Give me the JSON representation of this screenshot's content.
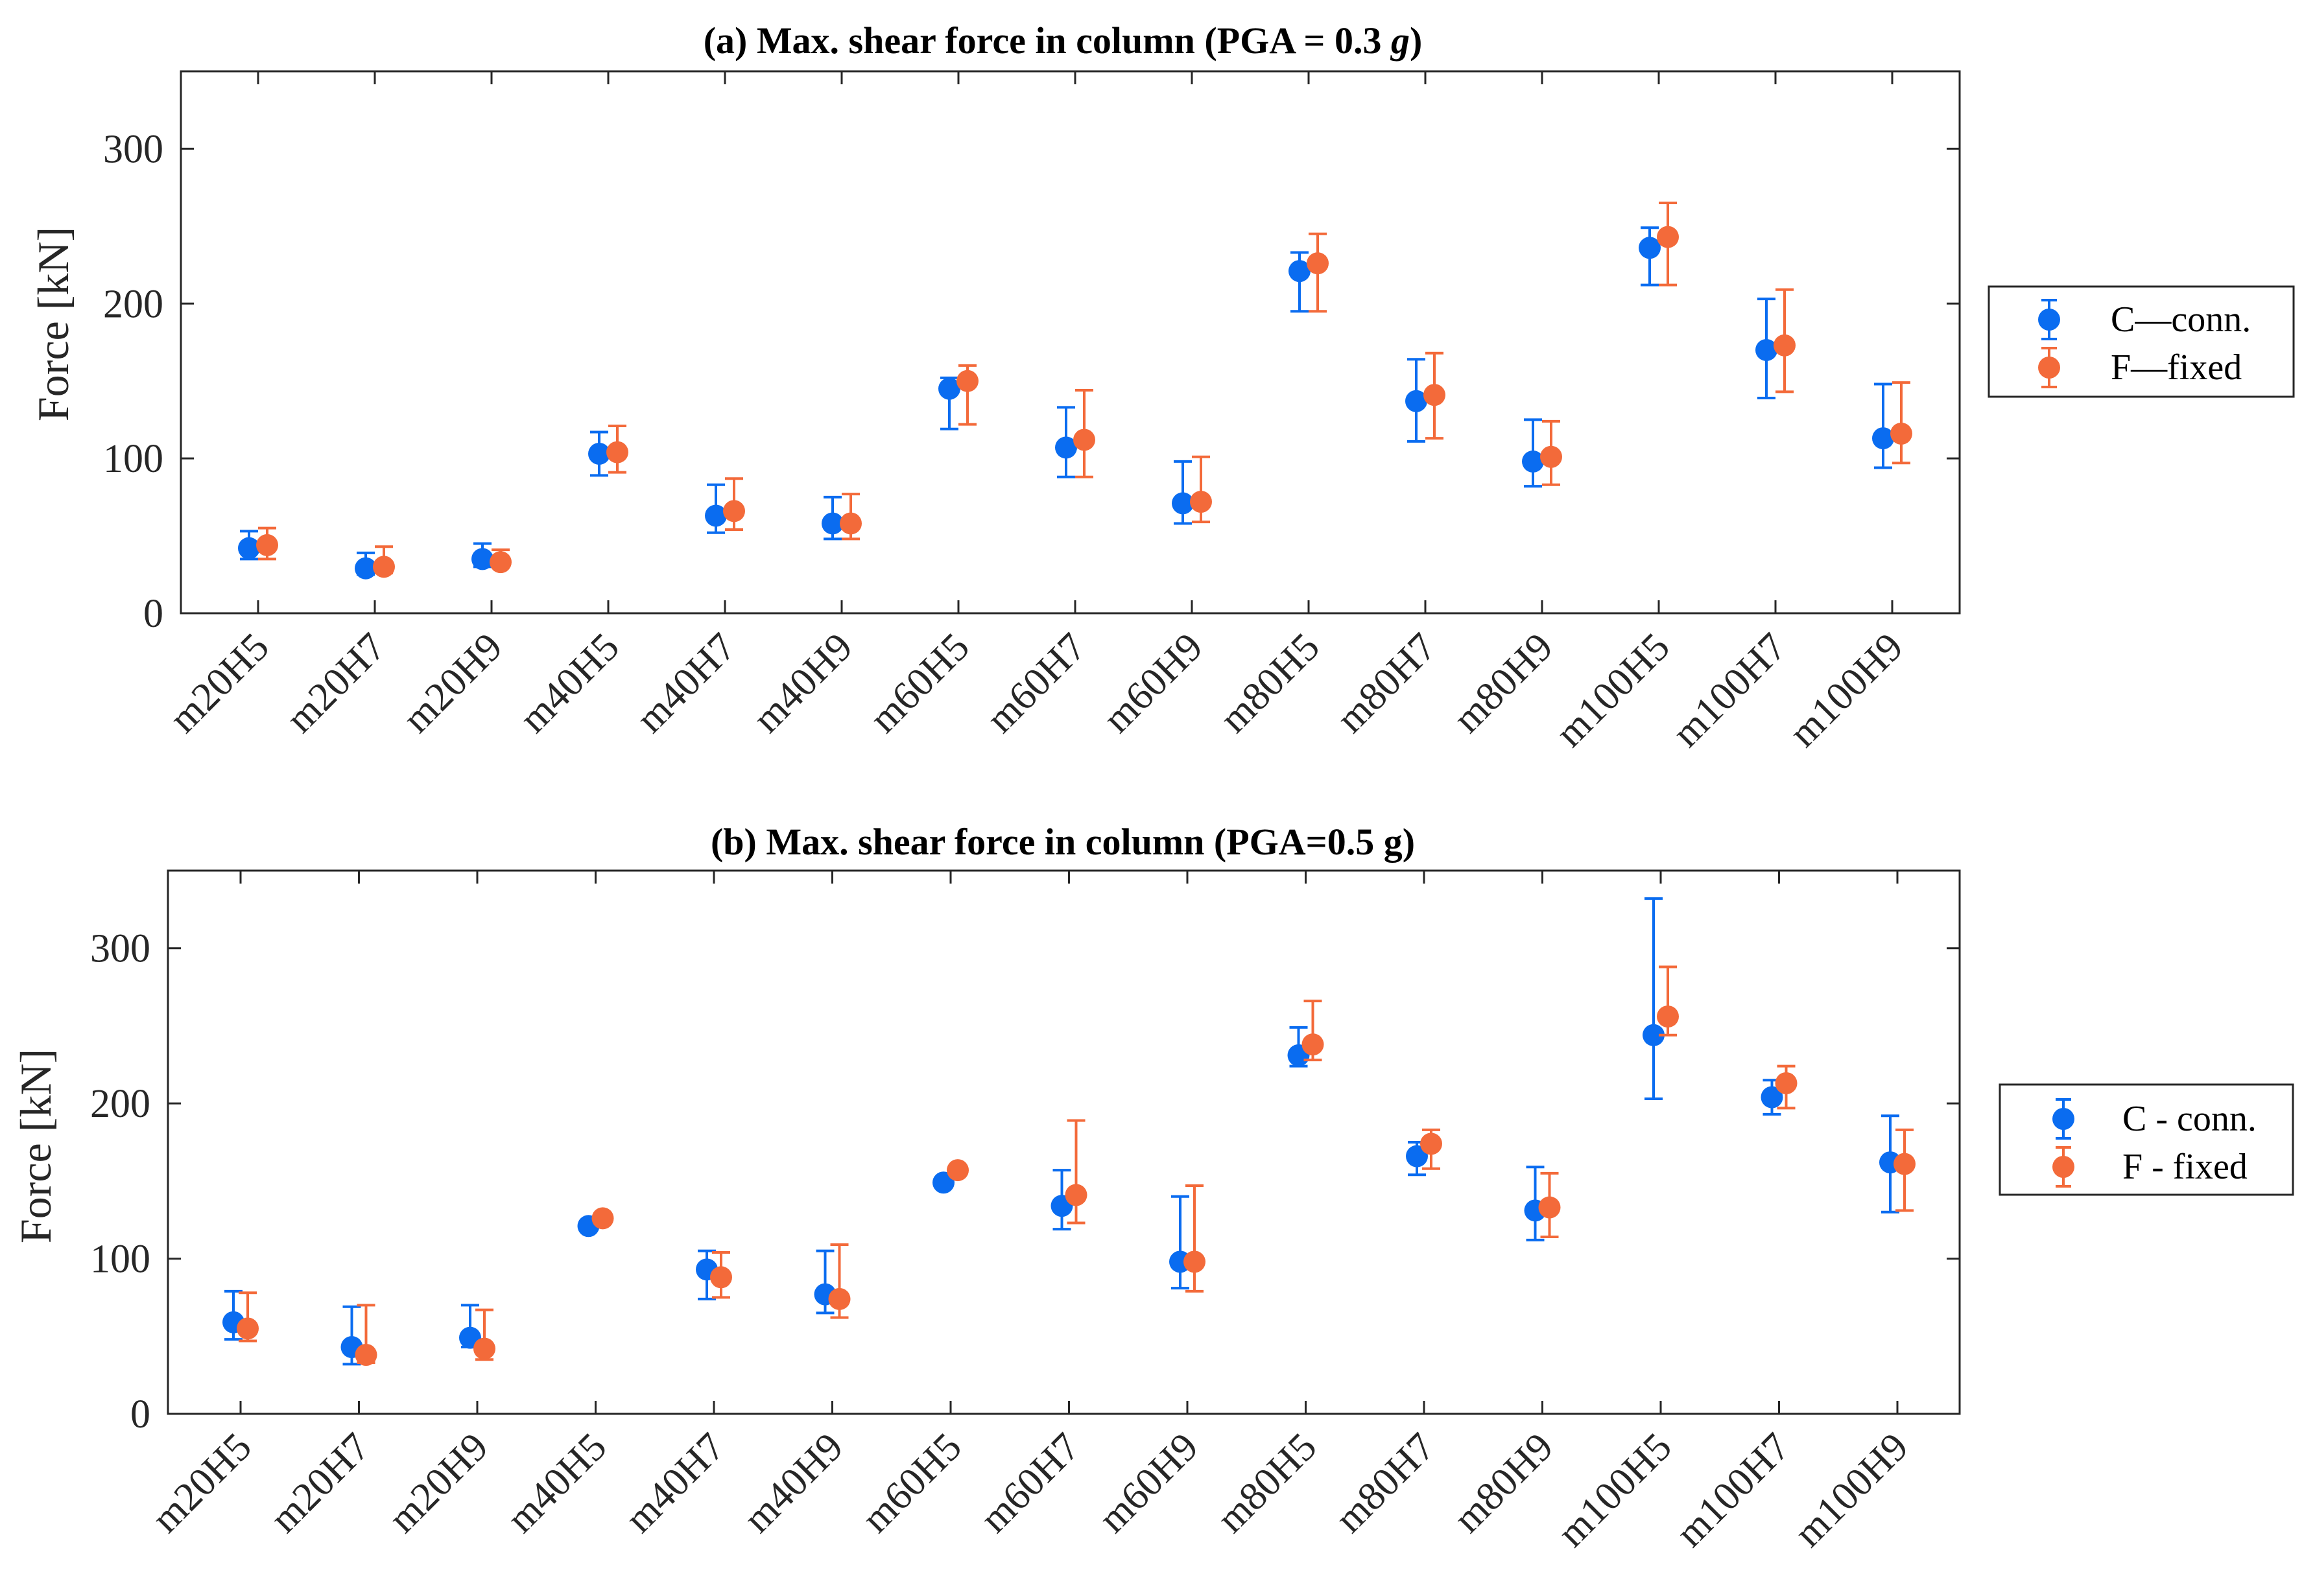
{
  "chart_data": [
    {
      "type": "scatter",
      "subtype": "errorbar",
      "title": "(a) Max. shear force in column (PGA = 0.3 g)",
      "title_prefix": "(a) Max. shear force in column (PGA = 0.3 ",
      "title_italic": "g",
      "title_suffix": ")",
      "xlabel": "",
      "ylabel": "Force [kN]",
      "ylim": [
        0,
        350
      ],
      "yticks": [
        0,
        100,
        200,
        300
      ],
      "grid": false,
      "legend_position": "right",
      "categories": [
        "m20H5",
        "m20H7",
        "m20H9",
        "m40H5",
        "m40H7",
        "m40H9",
        "m60H5",
        "m60H7",
        "m60H9",
        "m80H5",
        "m80H7",
        "m80H9",
        "m100H5",
        "m100H7",
        "m100H9"
      ],
      "series": [
        {
          "name": "C—conn.",
          "color": "#0a6cf0",
          "values": [
            42,
            29,
            35,
            103,
            63,
            58,
            145,
            107,
            71,
            221,
            137,
            98,
            236,
            170,
            113
          ],
          "lower": [
            35,
            25,
            30,
            89,
            52,
            48,
            119,
            88,
            58,
            195,
            111,
            82,
            212,
            139,
            94
          ],
          "upper": [
            53,
            39,
            45,
            117,
            83,
            75,
            152,
            133,
            98,
            233,
            164,
            125,
            249,
            203,
            148
          ]
        },
        {
          "name": "F—fixed",
          "color": "#f36a3a",
          "values": [
            44,
            30,
            33,
            104,
            66,
            58,
            150,
            112,
            72,
            226,
            141,
            101,
            243,
            173,
            116
          ],
          "lower": [
            35,
            26,
            30,
            91,
            54,
            48,
            122,
            88,
            59,
            195,
            113,
            83,
            212,
            143,
            97
          ],
          "upper": [
            55,
            43,
            41,
            121,
            87,
            77,
            160,
            144,
            101,
            245,
            168,
            124,
            265,
            209,
            149
          ]
        }
      ]
    },
    {
      "type": "scatter",
      "subtype": "errorbar",
      "title": "(b) Max. shear force in column (PGA=0.5 g)",
      "title_prefix": "(b) Max. shear force in column (PGA=0.5 g)",
      "title_italic": "",
      "title_suffix": "",
      "xlabel": "",
      "ylabel": "Force [kN]",
      "ylim": [
        0,
        350
      ],
      "yticks": [
        0,
        100,
        200,
        300
      ],
      "grid": false,
      "legend_position": "right",
      "categories": [
        "m20H5",
        "m20H7",
        "m20H9",
        "m40H5",
        "m40H7",
        "m40H9",
        "m60H5",
        "m60H7",
        "m60H9",
        "m80H5",
        "m80H7",
        "m80H9",
        "m100H5",
        "m100H7",
        "m100H9"
      ],
      "series": [
        {
          "name": "C - conn.",
          "color": "#0a6cf0",
          "values": [
            59,
            43,
            49,
            121,
            93,
            77,
            149,
            134,
            98,
            231,
            166,
            131,
            244,
            204,
            162
          ],
          "lower": [
            48,
            32,
            43,
            119,
            74,
            65,
            148,
            119,
            81,
            224,
            154,
            112,
            203,
            193,
            130
          ],
          "upper": [
            79,
            69,
            70,
            123,
            105,
            105,
            150,
            157,
            140,
            249,
            175,
            159,
            332,
            215,
            192
          ]
        },
        {
          "name": "F - fixed",
          "color": "#f36a3a",
          "values": [
            55,
            38,
            42,
            126,
            88,
            74,
            157,
            141,
            98,
            238,
            174,
            133,
            256,
            213,
            161
          ],
          "lower": [
            47,
            33,
            35,
            125,
            75,
            62,
            156,
            123,
            79,
            228,
            158,
            114,
            244,
            197,
            131
          ],
          "upper": [
            78,
            70,
            67,
            127,
            104,
            109,
            158,
            189,
            147,
            266,
            183,
            155,
            288,
            224,
            183
          ]
        }
      ]
    }
  ]
}
